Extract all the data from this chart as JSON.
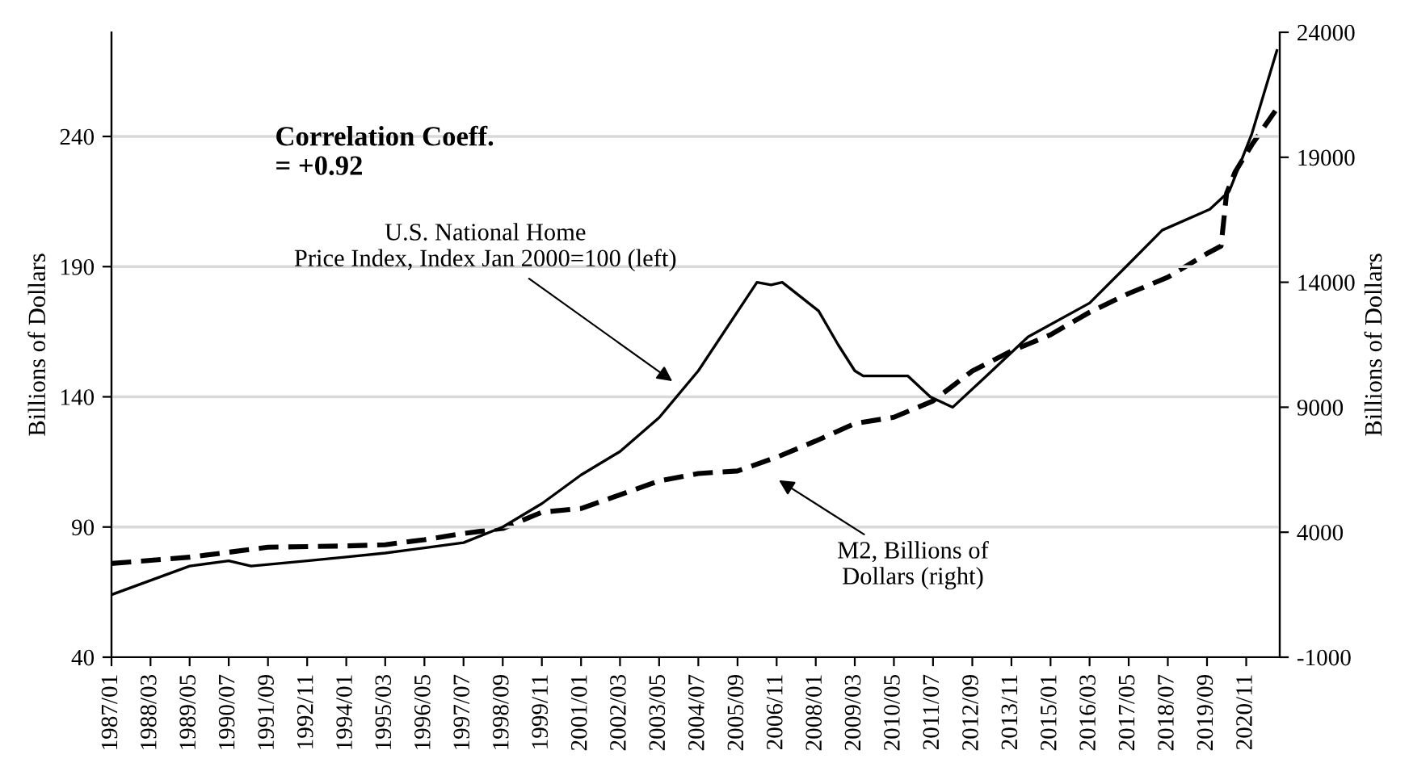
{
  "chart_data": {
    "type": "line",
    "ylabel": "Billions of Dollars",
    "y2label": "Billions of Dollars",
    "annotations": [
      "Correlation Coeff.\n= +0.92",
      {
        "text": "U.S. National Home\nPrice Index, Index Jan 2000=100 (left)",
        "x": "2003-11",
        "y": 145
      },
      "M2, Billions of\nDollars (right)"
    ],
    "series": [
      {
        "color": "#000000",
        "line_style": "solid",
        "x": [
          "1987-01",
          "1989-05",
          "1990-07",
          "1991-03",
          "1992-11",
          "1994-01",
          "1995-03",
          "1996-05",
          "1997-07",
          "1998-09",
          "1999-11",
          "2001-01",
          "2002-03",
          "2003-05",
          "2004-07",
          "2006-04",
          "2006-09",
          "2007-01",
          "2008-02",
          "2008-09",
          "2009-03",
          "2009-06",
          "2010-10",
          "2011-06",
          "2012-02",
          "2013-02",
          "2014-05",
          "2016-03",
          "2017-05",
          "2018-05",
          "2019-10",
          "2020-05",
          "2021-01",
          "2021-10"
        ],
        "values": [
          64,
          75,
          77,
          75,
          77,
          78.5,
          80,
          82,
          84,
          90,
          99,
          110,
          119,
          132,
          150,
          184,
          183,
          184,
          173,
          160,
          150,
          148,
          148,
          140,
          136,
          148,
          163,
          176,
          191,
          204,
          212,
          219,
          241,
          273
        ]
      },
      {
        "color": "#000000",
        "line_style": "dashed",
        "axis": "y2",
        "x": [
          "1987-01",
          "1989-05",
          "1990-07",
          "1991-09",
          "1994-01",
          "1995-03",
          "1996-05",
          "1997-07",
          "1998-09",
          "1999-11",
          "2001-01",
          "2002-03",
          "2003-05",
          "2004-07",
          "2005-09",
          "2006-11",
          "2008-01",
          "2009-03",
          "2010-05",
          "2011-07",
          "2012-09",
          "2013-11",
          "2015-01",
          "2016-03",
          "2017-05",
          "2018-07",
          "2019-09",
          "2020-02",
          "2020-04",
          "2020-07",
          "2021-01",
          "2021-10"
        ],
        "values": [
          2750,
          3000,
          3200,
          3400,
          3450,
          3500,
          3700,
          3950,
          4150,
          4800,
          4950,
          5500,
          6050,
          6350,
          6450,
          7000,
          7650,
          8350,
          8600,
          9250,
          10450,
          11250,
          11900,
          12800,
          13550,
          14200,
          15150,
          15450,
          17550,
          18400,
          19500,
          20950
        ]
      }
    ],
    "xlim": [
      "1987-01",
      "2021-11"
    ],
    "xticks": [
      {
        "value": "1987-01",
        "label": "1987/01"
      },
      {
        "value": "1988-03",
        "label": "1988/03"
      },
      {
        "value": "1989-05",
        "label": "1989/05"
      },
      {
        "value": "1990-07",
        "label": "1990/07"
      },
      {
        "value": "1991-09",
        "label": "1991/09"
      },
      {
        "value": "1992-11",
        "label": "1992/11"
      },
      {
        "value": "1994-01",
        "label": "1994/01"
      },
      {
        "value": "1995-03",
        "label": "1995/03"
      },
      {
        "value": "1996-05",
        "label": "1996/05"
      },
      {
        "value": "1997-07",
        "label": "1997/07"
      },
      {
        "value": "1998-09",
        "label": "1998/09"
      },
      {
        "value": "1999-11",
        "label": "1999/11"
      },
      {
        "value": "2001-01",
        "label": "2001/01"
      },
      {
        "value": "2002-03",
        "label": "2002/03"
      },
      {
        "value": "2003-05",
        "label": "2003/05"
      },
      {
        "value": "2004-07",
        "label": "2004/07"
      },
      {
        "value": "2005-09",
        "label": "2005/09"
      },
      {
        "value": "2006-11",
        "label": "2006/11"
      },
      {
        "value": "2008-01",
        "label": "2008/01"
      },
      {
        "value": "2009-03",
        "label": "2009/03"
      },
      {
        "value": "2010-05",
        "label": "2010/05"
      },
      {
        "value": "2011-07",
        "label": "2011/07"
      },
      {
        "value": "2012-09",
        "label": "2012/09"
      },
      {
        "value": "2013-11",
        "label": "2013/11"
      },
      {
        "value": "2015-01",
        "label": "2015/01"
      },
      {
        "value": "2016-03",
        "label": "2016/03"
      },
      {
        "value": "2017-05",
        "label": "2017/05"
      },
      {
        "value": "2018-07",
        "label": "2018/07"
      },
      {
        "value": "2019-09",
        "label": "2019/09"
      },
      {
        "value": "2020-11",
        "label": "2020/11"
      }
    ],
    "ylim": [
      40,
      280
    ],
    "yticks": [
      40,
      90,
      140,
      190,
      240
    ],
    "y2lim": [
      -1000,
      24000
    ],
    "y2ticks": [
      -1000,
      4000,
      9000,
      14000,
      19000,
      24000
    ],
    "grid": "y",
    "marker": "none"
  }
}
